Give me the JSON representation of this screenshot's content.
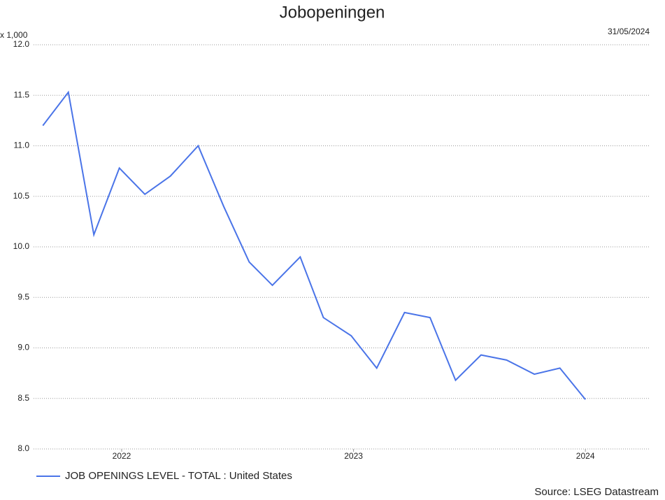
{
  "chart_data": {
    "type": "line",
    "title": "Jobopeningen",
    "date": "31/05/2024",
    "y_unit": "x 1,000",
    "source": "Source: LSEG Datastream",
    "x": [
      2021.66,
      2021.77,
      2021.88,
      2021.99,
      2022.1,
      2022.21,
      2022.33,
      2022.44,
      2022.55,
      2022.65,
      2022.77,
      2022.87,
      2022.99,
      2023.1,
      2023.22,
      2023.33,
      2023.44,
      2023.55,
      2023.66,
      2023.78,
      2023.89,
      2024.0
    ],
    "series": [
      {
        "name": "JOB OPENINGS LEVEL - TOTAL : United States",
        "color": "#4a74e8",
        "values": [
          11.2,
          11.53,
          10.12,
          10.78,
          10.52,
          10.7,
          11.0,
          10.4,
          9.85,
          9.62,
          9.9,
          9.3,
          9.12,
          8.8,
          9.35,
          9.3,
          8.68,
          8.93,
          8.88,
          8.74,
          8.8,
          8.49
        ]
      }
    ],
    "xlim": [
      2021.62,
      2024.28
    ],
    "xticks": [
      2022,
      2023,
      2024
    ],
    "ylim": [
      8,
      12
    ],
    "yticks": [
      {
        "value": 8,
        "label": "8.0"
      },
      {
        "value": 8.5,
        "label": "8.5"
      },
      {
        "value": 9,
        "label": "9.0"
      },
      {
        "value": 9.5,
        "label": "9.5"
      },
      {
        "value": 10,
        "label": "10.0"
      },
      {
        "value": 10.5,
        "label": "10.5"
      },
      {
        "value": 11,
        "label": "11.0"
      },
      {
        "value": 11.5,
        "label": "11.5"
      },
      {
        "value": 12,
        "label": "12.0"
      }
    ],
    "grid": true,
    "legend": "bottom-left"
  }
}
